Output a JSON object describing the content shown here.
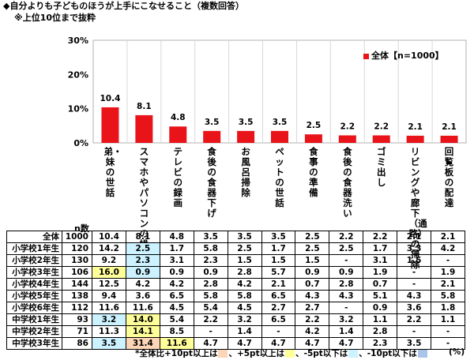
{
  "title": "◆自分よりも子どものほうが上手にこなせること（複数回答）",
  "subtitle": "※上位10位まで抜粋",
  "chart_data": {
    "type": "bar",
    "categories": [
      "弟・妹の世話",
      "スマホやパソコンの操作",
      "テレビの録画",
      "食後の食器下げ",
      "お風呂掃除",
      "ペットの世話",
      "食事の準備",
      "食後の食器洗い",
      "ゴミ出し",
      "リビングや廊下（通路）の掃除",
      "回覧板の配達"
    ],
    "values": [
      10.4,
      8.1,
      4.8,
      3.5,
      3.5,
      3.5,
      2.5,
      2.2,
      2.2,
      2.1,
      2.1
    ],
    "value_labels": [
      "10.4",
      "8.1",
      "4.8",
      "3.5",
      "3.5",
      "3.5",
      "2.5",
      "2.2",
      "2.2",
      "2.1",
      "2.1"
    ],
    "series": [
      {
        "name": "全体【n=1000】",
        "values": [
          10.4,
          8.1,
          4.8,
          3.5,
          3.5,
          3.5,
          2.5,
          2.2,
          2.2,
          2.1,
          2.1
        ]
      }
    ],
    "yticks": [
      "0%",
      "10%",
      "20%",
      "30%"
    ],
    "ylim": [
      0,
      30
    ],
    "legend_position": "top-right",
    "color": "#e8141a"
  },
  "table": {
    "n_header": "n数",
    "rows": [
      {
        "label": "全体",
        "n": "1000",
        "values": [
          "10.4",
          "8.1",
          "4.8",
          "3.5",
          "3.5",
          "3.5",
          "2.5",
          "2.2",
          "2.2",
          "2.1",
          "2.1"
        ],
        "hl": [
          "",
          "",
          "",
          "",
          "",
          "",
          "",
          "",
          "",
          "",
          ""
        ]
      },
      {
        "label": "小学校1年生",
        "n": "120",
        "values": [
          "14.2",
          "2.5",
          "1.7",
          "5.8",
          "2.5",
          "1.7",
          "2.5",
          "2.5",
          "1.7",
          "3.3",
          "4.2"
        ],
        "hl": [
          "",
          "cyan",
          "",
          "",
          "",
          "",
          "",
          "",
          "",
          "",
          ""
        ]
      },
      {
        "label": "小学校2年生",
        "n": "130",
        "values": [
          "9.2",
          "2.3",
          "3.1",
          "2.3",
          "1.5",
          "1.5",
          "1.5",
          "-",
          "3.1",
          "1.5",
          "-"
        ],
        "hl": [
          "",
          "cyan",
          "",
          "",
          "",
          "",
          "",
          "",
          "",
          "",
          ""
        ]
      },
      {
        "label": "小学校3年生",
        "n": "106",
        "values": [
          "16.0",
          "0.9",
          "0.9",
          "0.9",
          "2.8",
          "5.7",
          "0.9",
          "0.9",
          "1.9",
          "-",
          "1.9"
        ],
        "hl": [
          "yellow",
          "cyan",
          "",
          "",
          "",
          "",
          "",
          "",
          "",
          "",
          ""
        ]
      },
      {
        "label": "小学校4年生",
        "n": "144",
        "values": [
          "12.5",
          "4.2",
          "4.2",
          "2.8",
          "4.2",
          "2.1",
          "0.7",
          "2.8",
          "0.7",
          "-",
          "2.1"
        ],
        "hl": [
          "",
          "",
          "",
          "",
          "",
          "",
          "",
          "",
          "",
          "",
          ""
        ]
      },
      {
        "label": "小学校5年生",
        "n": "138",
        "values": [
          "9.4",
          "3.6",
          "6.5",
          "5.8",
          "5.8",
          "6.5",
          "4.3",
          "4.3",
          "5.1",
          "4.3",
          "5.8"
        ],
        "hl": [
          "",
          "",
          "",
          "",
          "",
          "",
          "",
          "",
          "",
          "",
          ""
        ]
      },
      {
        "label": "小学校6年生",
        "n": "112",
        "values": [
          "11.6",
          "11.6",
          "4.5",
          "5.4",
          "4.5",
          "2.7",
          "2.7",
          "-",
          "0.9",
          "3.6",
          "1.8"
        ],
        "hl": [
          "",
          "",
          "",
          "",
          "",
          "",
          "",
          "",
          "",
          "",
          ""
        ]
      },
      {
        "label": "中学校1年生",
        "n": "93",
        "values": [
          "3.2",
          "14.0",
          "5.4",
          "2.2",
          "3.2",
          "6.5",
          "2.2",
          "3.2",
          "1.1",
          "2.2",
          "1.1"
        ],
        "hl": [
          "cyan",
          "yellow",
          "",
          "",
          "",
          "",
          "",
          "",
          "",
          "",
          ""
        ]
      },
      {
        "label": "中学校2年生",
        "n": "71",
        "values": [
          "11.3",
          "14.1",
          "8.5",
          "-",
          "1.4",
          "-",
          "4.2",
          "1.4",
          "2.8",
          "-",
          "-"
        ],
        "hl": [
          "",
          "yellow",
          "",
          "",
          "",
          "",
          "",
          "",
          "",
          "",
          ""
        ]
      },
      {
        "label": "中学校3年生",
        "n": "86",
        "values": [
          "3.5",
          "31.4",
          "11.6",
          "4.7",
          "4.7",
          "4.7",
          "4.7",
          "4.7",
          "2.3",
          "3.5",
          "-"
        ],
        "hl": [
          "cyan",
          "orange",
          "yellow",
          "",
          "",
          "",
          "",
          "",
          "",
          "",
          ""
        ]
      }
    ]
  },
  "footnote": {
    "prefix": "*全体比",
    "items": [
      "+10pt以上は",
      "、+5pt以上は",
      "、-5pt以下は",
      "、-10pt以下は"
    ],
    "unit": "(%)"
  }
}
